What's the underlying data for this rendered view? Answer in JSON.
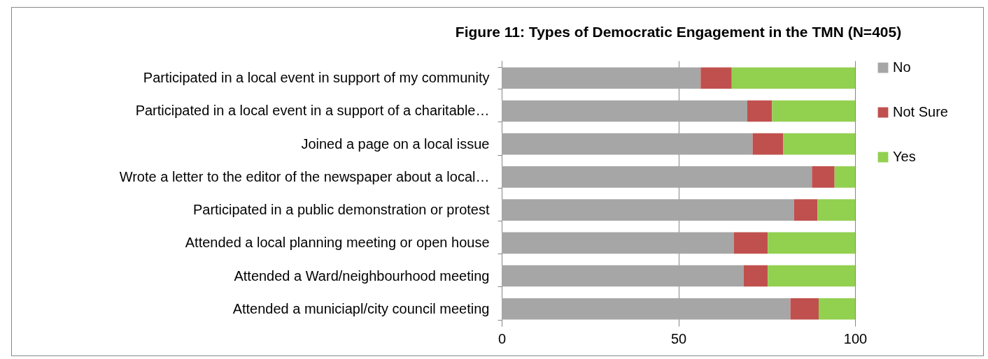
{
  "chart_data": {
    "type": "bar",
    "orientation": "horizontal",
    "stacked": true,
    "title": "Figure 11: Types of Democratic Engagement in the TMN (N=405)",
    "categories": [
      "Participated in a local event in support of my community",
      "Participated in a local event in a support of a charitable…",
      "Joined a page on a local issue",
      "Wrote a letter to the editor of the newspaper about a local…",
      "Participated in a public demonstration or protest",
      "Attended a local planning meeting or open house",
      "Attended a Ward/neighbourhood meeting",
      "Attended a municiapl/city council meeting"
    ],
    "series": [
      {
        "name": "No",
        "color": "#a6a6a6",
        "values": [
          56.3,
          69.5,
          71.0,
          87.8,
          82.7,
          65.7,
          68.5,
          81.7
        ]
      },
      {
        "name": "Not Sure",
        "color": "#c0504d",
        "values": [
          8.8,
          7.0,
          8.7,
          6.4,
          6.7,
          9.6,
          6.8,
          8.0
        ]
      },
      {
        "name": "Yes",
        "color": "#92d050",
        "values": [
          34.9,
          23.5,
          20.3,
          5.8,
          10.6,
          24.7,
          24.7,
          10.3
        ]
      }
    ],
    "xlim": [
      0,
      100
    ],
    "xticks": [
      0,
      50,
      100
    ],
    "grid": "x",
    "legend": "right"
  }
}
